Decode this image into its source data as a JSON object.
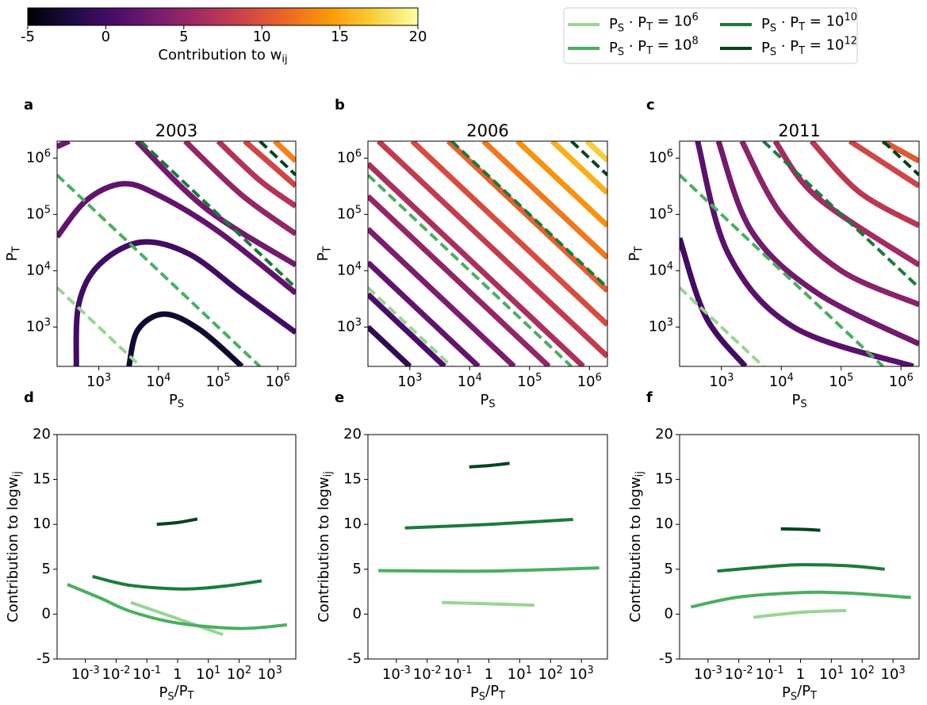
{
  "colorbar": {
    "label": "Contribution to w_ij",
    "lim": [
      -5,
      20
    ],
    "ticks": [
      -5,
      0,
      5,
      10,
      15,
      20
    ],
    "cmap": "inferno"
  },
  "legend": {
    "columns": 2,
    "series": [
      {
        "name": "P_S · P_T = 10^6",
        "color": "#98d594",
        "value": 1000000
      },
      {
        "name": "P_S · P_T = 10^8",
        "color": "#4aaf61",
        "value": 100000000
      },
      {
        "name": "P_S · P_T = 10^10",
        "color": "#1a7b3a",
        "value": 10000000000
      },
      {
        "name": "P_S · P_T = 10^12",
        "color": "#00441b",
        "value": 1000000000000
      }
    ]
  },
  "chart_data": [
    {
      "type": "contour",
      "label": "a",
      "title": "2003",
      "x_label": "P_S",
      "y_label": "P_T",
      "log_x": true,
      "log_y": true,
      "xlim": [
        200,
        2000000
      ],
      "ylim": [
        200,
        2000000
      ],
      "xticks": [
        {
          "value": 1000,
          "label": "10^3"
        },
        {
          "value": 10000,
          "label": "10^4"
        },
        {
          "value": 100000,
          "label": "10^5"
        },
        {
          "value": 1000000,
          "label": "10^6"
        }
      ],
      "yticks": [
        {
          "value": 1000,
          "label": "10^3"
        },
        {
          "value": 10000,
          "label": "10^4"
        },
        {
          "value": 100000,
          "label": "10^5"
        },
        {
          "value": 1000000,
          "label": "10^6"
        }
      ],
      "contours": [
        {
          "level": -3,
          "x": [
            3200,
            4500,
            12600,
            50000,
            250000
          ],
          "y": [
            200,
            890,
            1700,
            890,
            200
          ]
        },
        {
          "level": 0,
          "x": [
            420,
            460,
            1000,
            5000,
            32000,
            250000,
            2000000
          ],
          "y": [
            200,
            2500,
            12600,
            32000,
            20000,
            4000,
            800
          ]
        },
        {
          "level": 2,
          "x": [
            200,
            630,
            2500,
            10000,
            100000,
            2000000
          ],
          "y": [
            40000,
            180000,
            350000,
            220000,
            50000,
            4000
          ]
        },
        {
          "level": 3,
          "x": [
            200,
            320
          ],
          "y": [
            1600000,
            2000000
          ]
        },
        {
          "level": 3,
          "x": [
            4300,
            63000,
            2000000
          ],
          "y": [
            2000000,
            126000,
            12600
          ]
        },
        {
          "level": 5,
          "x": [
            28000,
            250000,
            2000000
          ],
          "y": [
            2000000,
            220000,
            45000
          ]
        },
        {
          "level": 7,
          "x": [
            100000,
            500000,
            2000000
          ],
          "y": [
            2000000,
            400000,
            140000
          ]
        },
        {
          "level": 9,
          "x": [
            280000,
            2000000
          ],
          "y": [
            2000000,
            320000
          ]
        },
        {
          "level": 13,
          "x": [
            890000,
            2000000
          ],
          "y": [
            2000000,
            890000
          ]
        }
      ]
    },
    {
      "type": "contour",
      "label": "b",
      "title": "2006",
      "x_label": "P_S",
      "y_label": "P_T",
      "log_x": true,
      "log_y": true,
      "xlim": [
        200,
        2000000
      ],
      "ylim": [
        200,
        2000000
      ],
      "xticks": [
        {
          "value": 1000,
          "label": "10^3"
        },
        {
          "value": 10000,
          "label": "10^4"
        },
        {
          "value": 100000,
          "label": "10^5"
        },
        {
          "value": 1000000,
          "label": "10^6"
        }
      ],
      "yticks": [
        {
          "value": 1000,
          "label": "10^3"
        },
        {
          "value": 10000,
          "label": "10^4"
        },
        {
          "value": 100000,
          "label": "10^5"
        },
        {
          "value": 1000000,
          "label": "10^6"
        }
      ],
      "contours": [
        {
          "level": -1,
          "x": [
            200,
            1000
          ],
          "y": [
            1000,
            200
          ]
        },
        {
          "level": 0.5,
          "x": [
            200,
            3800
          ],
          "y": [
            3800,
            200
          ]
        },
        {
          "level": 2,
          "x": [
            200,
            14000
          ],
          "y": [
            14000,
            200
          ]
        },
        {
          "level": 3.5,
          "x": [
            200,
            55000
          ],
          "y": [
            55000,
            200
          ]
        },
        {
          "level": 5,
          "x": [
            200,
            210000
          ],
          "y": [
            210000,
            200
          ]
        },
        {
          "level": 6.5,
          "x": [
            200,
            790000
          ],
          "y": [
            790000,
            200
          ]
        },
        {
          "level": 8,
          "x": [
            300,
            2000000
          ],
          "y": [
            2000000,
            300
          ]
        },
        {
          "level": 9.5,
          "x": [
            1100,
            2000000
          ],
          "y": [
            2000000,
            1100
          ]
        },
        {
          "level": 11,
          "x": [
            4400,
            2000000
          ],
          "y": [
            2000000,
            4400
          ]
        },
        {
          "level": 12.5,
          "x": [
            17000,
            2000000
          ],
          "y": [
            2000000,
            17000
          ]
        },
        {
          "level": 14,
          "x": [
            63000,
            2000000
          ],
          "y": [
            2000000,
            63000
          ]
        },
        {
          "level": 15.5,
          "x": [
            240000,
            2000000
          ],
          "y": [
            2000000,
            240000
          ]
        },
        {
          "level": 17,
          "x": [
            910000,
            2000000
          ],
          "y": [
            2000000,
            910000
          ]
        }
      ]
    },
    {
      "type": "contour",
      "label": "c",
      "title": "2011",
      "x_label": "P_S",
      "y_label": "P_T",
      "log_x": true,
      "log_y": true,
      "xlim": [
        200,
        2000000
      ],
      "ylim": [
        200,
        2000000
      ],
      "xticks": [
        {
          "value": 1000,
          "label": "10^3"
        },
        {
          "value": 10000,
          "label": "10^4"
        },
        {
          "value": 100000,
          "label": "10^5"
        },
        {
          "value": 1000000,
          "label": "10^6"
        }
      ],
      "yticks": [
        {
          "value": 1000,
          "label": "10^3"
        },
        {
          "value": 10000,
          "label": "10^4"
        },
        {
          "value": 100000,
          "label": "10^5"
        },
        {
          "value": 1000000,
          "label": "10^6"
        }
      ],
      "contours": [
        {
          "level": 0,
          "x": [
            200,
            550,
            2500
          ],
          "y": [
            38000,
            1500,
            200
          ]
        },
        {
          "level": 1.5,
          "x": [
            400,
            1300,
            16000,
            1600000
          ],
          "y": [
            2000000,
            20000,
            1000,
            200
          ]
        },
        {
          "level": 3,
          "x": [
            890,
            3200,
            40000,
            2000000
          ],
          "y": [
            2000000,
            50000,
            4000,
            500
          ]
        },
        {
          "level": 4.5,
          "x": [
            2200,
            10000,
            100000,
            2000000
          ],
          "y": [
            2000000,
            100000,
            10000,
            2500
          ]
        },
        {
          "level": 6,
          "x": [
            7900,
            40000,
            2000000
          ],
          "y": [
            2000000,
            200000,
            12600
          ]
        },
        {
          "level": 7.5,
          "x": [
            32000,
            200000,
            2000000
          ],
          "y": [
            2000000,
            250000,
            63000
          ]
        },
        {
          "level": 9,
          "x": [
            140000,
            2000000
          ],
          "y": [
            2000000,
            320000
          ]
        },
        {
          "level": 10.5,
          "x": [
            500000,
            2000000
          ],
          "y": [
            2000000,
            890000
          ]
        }
      ]
    },
    {
      "type": "line",
      "label": "d",
      "x_label": "P_S/P_T",
      "y_label": "Contribution to logw_ij",
      "log_x": true,
      "xlim": [
        0.00012,
        7000
      ],
      "ylim": [
        -5,
        20
      ],
      "xticks": [
        {
          "value": 0.001,
          "label": "10^-3"
        },
        {
          "value": 0.01,
          "label": "10^-2"
        },
        {
          "value": 0.1,
          "label": "10^-1"
        },
        1,
        {
          "value": 10,
          "label": "10^1"
        },
        {
          "value": 100,
          "label": "10^2"
        },
        {
          "value": 1000,
          "label": "10^3"
        }
      ],
      "yticks": [
        -5,
        0,
        5,
        10,
        15,
        20
      ],
      "series": [
        {
          "color": "#98d594",
          "x": [
            0.03,
            1,
            30
          ],
          "values": [
            1.3,
            -0.5,
            -2.3
          ]
        },
        {
          "color": "#4aaf61",
          "x": [
            0.00026,
            0.003,
            0.03,
            1,
            100,
            3600
          ],
          "values": [
            3.3,
            1.8,
            0.3,
            -1.0,
            -1.6,
            -1.2
          ]
        },
        {
          "color": "#1a7b3a",
          "x": [
            0.0017,
            0.03,
            1.5,
            30,
            540
          ],
          "values": [
            4.2,
            3.2,
            2.8,
            3.1,
            3.7
          ]
        },
        {
          "color": "#00441b",
          "x": [
            0.21,
            1,
            4.4
          ],
          "values": [
            10.0,
            10.2,
            10.6
          ]
        }
      ]
    },
    {
      "type": "line",
      "label": "e",
      "x_label": "P_S/P_T",
      "y_label": "Contribution to logw_ij",
      "log_x": true,
      "xlim": [
        0.00012,
        7000
      ],
      "ylim": [
        -5,
        20
      ],
      "xticks": [
        {
          "value": 0.001,
          "label": "10^-3"
        },
        {
          "value": 0.01,
          "label": "10^-2"
        },
        {
          "value": 0.1,
          "label": "10^-1"
        },
        1,
        {
          "value": 10,
          "label": "10^1"
        },
        {
          "value": 100,
          "label": "10^2"
        },
        {
          "value": 1000,
          "label": "10^3"
        }
      ],
      "yticks": [
        -5,
        0,
        5,
        10,
        15,
        20
      ],
      "series": [
        {
          "color": "#98d594",
          "x": [
            0.03,
            1,
            30
          ],
          "values": [
            1.3,
            1.15,
            1.0
          ]
        },
        {
          "color": "#4aaf61",
          "x": [
            0.00026,
            1,
            3800
          ],
          "values": [
            4.85,
            4.8,
            5.15
          ]
        },
        {
          "color": "#1a7b3a",
          "x": [
            0.0019,
            1,
            540
          ],
          "values": [
            9.6,
            10.0,
            10.55
          ]
        },
        {
          "color": "#00441b",
          "x": [
            0.23,
            1,
            4.7
          ],
          "values": [
            16.4,
            16.55,
            16.8
          ]
        }
      ]
    },
    {
      "type": "line",
      "label": "f",
      "x_label": "P_S/P_T",
      "y_label": "Contribution to logw_ij",
      "log_x": true,
      "xlim": [
        0.00012,
        7000
      ],
      "ylim": [
        -5,
        20
      ],
      "xticks": [
        {
          "value": 0.001,
          "label": "10^-3"
        },
        {
          "value": 0.01,
          "label": "10^-2"
        },
        {
          "value": 0.1,
          "label": "10^-1"
        },
        1,
        {
          "value": 10,
          "label": "10^1"
        },
        {
          "value": 100,
          "label": "10^2"
        },
        {
          "value": 1000,
          "label": "10^3"
        }
      ],
      "yticks": [
        -5,
        0,
        5,
        10,
        15,
        20
      ],
      "series": [
        {
          "color": "#98d594",
          "x": [
            0.03,
            1,
            30
          ],
          "values": [
            -0.35,
            0.2,
            0.4
          ]
        },
        {
          "color": "#4aaf61",
          "x": [
            0.00028,
            0.01,
            1,
            30,
            3800
          ],
          "values": [
            0.8,
            1.9,
            2.4,
            2.35,
            1.85
          ]
        },
        {
          "color": "#1a7b3a",
          "x": [
            0.002,
            0.1,
            1,
            30,
            540
          ],
          "values": [
            4.8,
            5.3,
            5.5,
            5.4,
            5.0
          ]
        },
        {
          "color": "#00441b",
          "x": [
            0.23,
            1,
            4.4
          ],
          "values": [
            9.5,
            9.45,
            9.35
          ]
        }
      ]
    }
  ]
}
